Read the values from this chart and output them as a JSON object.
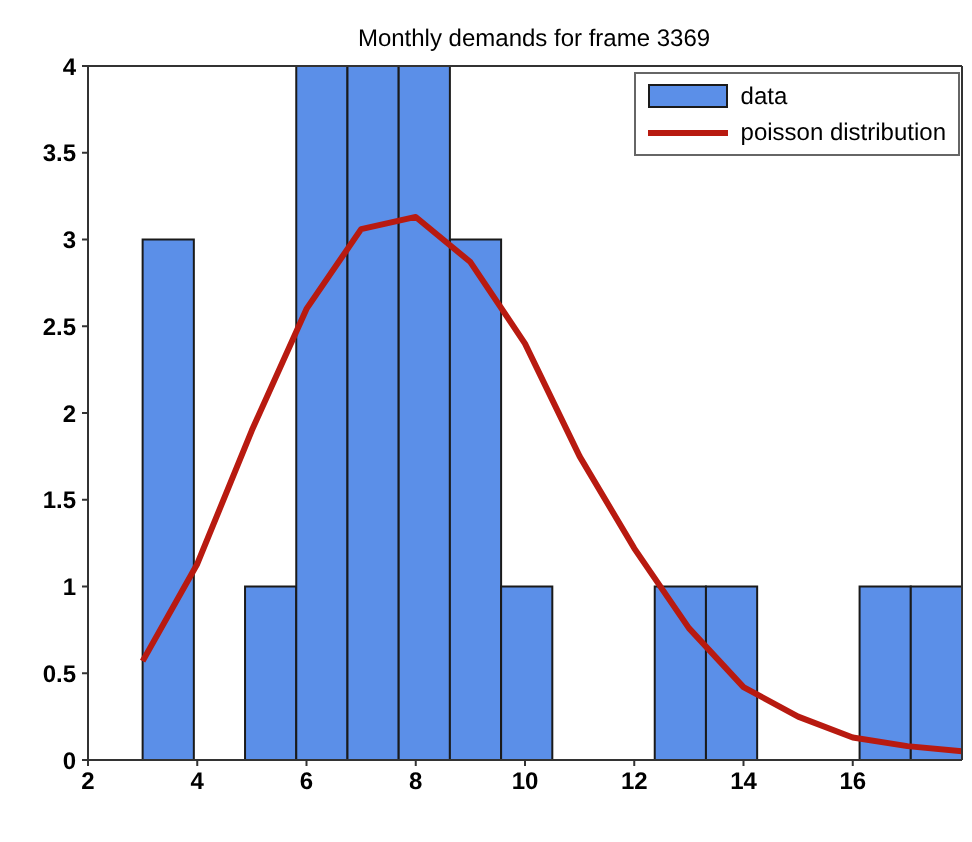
{
  "chart_data": {
    "type": "histogram",
    "title": "Monthly demands for frame 3369",
    "bins": [
      3,
      3.9375,
      4.875,
      5.8125,
      6.75,
      7.6875,
      8.625,
      9.5625,
      10.5,
      11.4375,
      12.375,
      13.3125,
      14.25,
      15.1875,
      16.125,
      17.0625,
      18
    ],
    "series": [
      {
        "name": "data",
        "color": "#5b8fe8",
        "values": [
          3,
          0,
          1,
          4,
          4,
          4,
          3,
          1,
          0,
          0,
          1,
          1,
          0,
          0,
          1,
          1
        ]
      },
      {
        "name": "poisson distribution",
        "type": "line",
        "color": "#b81a10",
        "x": [
          3,
          4,
          5,
          6,
          7,
          8,
          9,
          10,
          11,
          12,
          13,
          14,
          15,
          16,
          17,
          18
        ],
        "values": [
          0.57,
          1.13,
          1.9,
          2.6,
          3.06,
          3.13,
          2.87,
          2.4,
          1.75,
          1.22,
          0.76,
          0.42,
          0.25,
          0.13,
          0.08,
          0.05
        ]
      }
    ],
    "xlim": [
      2,
      18
    ],
    "xticks": [
      2,
      4,
      6,
      8,
      10,
      12,
      14,
      16
    ],
    "ylim": [
      0,
      4
    ],
    "yticks": [
      0,
      0.5,
      1,
      1.5,
      2,
      2.5,
      3,
      3.5,
      4
    ],
    "grid": false,
    "legend": "top right",
    "marker": "none",
    "line_style": "solid"
  }
}
